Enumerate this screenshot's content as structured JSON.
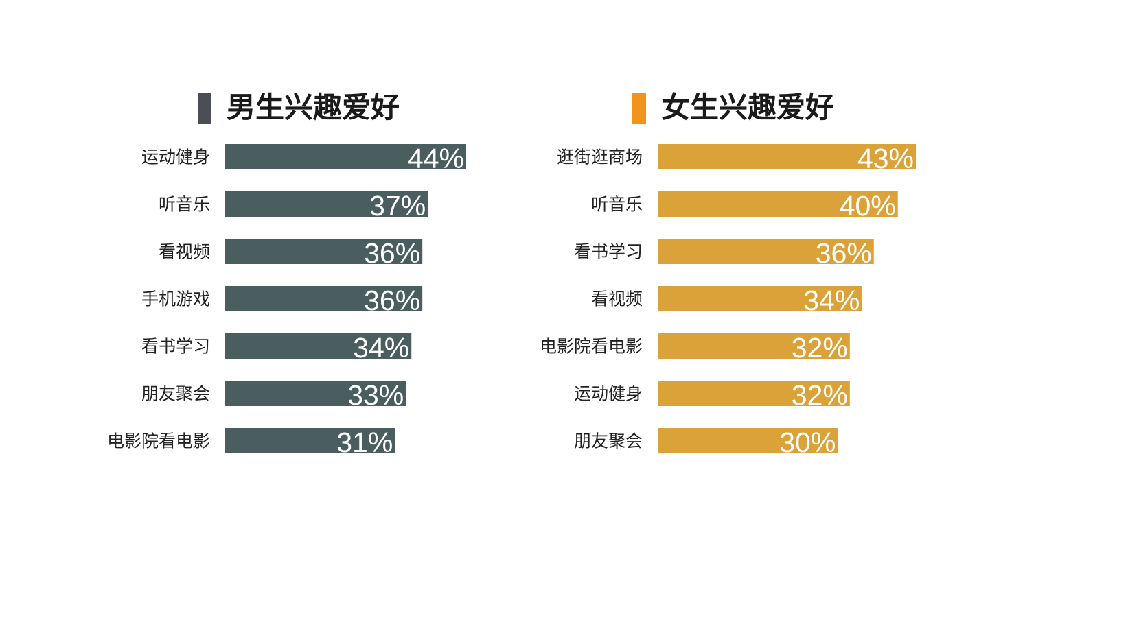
{
  "colors": {
    "male_bar": "#4a5e5f",
    "male_marker": "#4b4f55",
    "female_bar": "#dca23a",
    "female_marker": "#f0941e"
  },
  "chart_data": [
    {
      "type": "bar",
      "orientation": "horizontal",
      "title": "男生兴趣爱好",
      "categories": [
        "运动健身",
        "听音乐",
        "看视频",
        "手机游戏",
        "看书学习",
        "朋友聚会",
        "电影院看电影"
      ],
      "values": [
        44,
        37,
        36,
        36,
        34,
        33,
        31
      ],
      "value_labels": [
        "44%",
        "37%",
        "36%",
        "36%",
        "34%",
        "33%",
        "31%"
      ],
      "unit": "%",
      "grid": false,
      "xlim": [
        0,
        44
      ]
    },
    {
      "type": "bar",
      "orientation": "horizontal",
      "title": "女生兴趣爱好",
      "categories": [
        "逛街逛商场",
        "听音乐",
        "看书学习",
        "看视频",
        "电影院看电影",
        "运动健身",
        "朋友聚会"
      ],
      "values": [
        43,
        40,
        36,
        34,
        32,
        32,
        30
      ],
      "value_labels": [
        "43%",
        "40%",
        "36%",
        "34%",
        "32%",
        "32%",
        "30%"
      ],
      "unit": "%",
      "grid": false,
      "xlim": [
        0,
        43
      ]
    }
  ]
}
